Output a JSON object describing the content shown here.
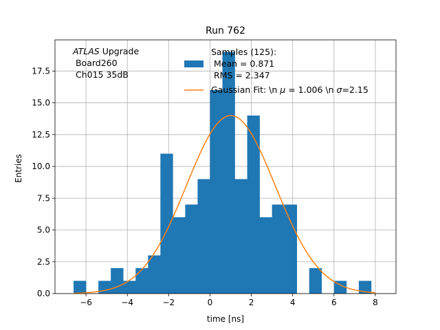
{
  "chart_data": {
    "type": "bar",
    "title": "Run 762",
    "xlabel": "time [ns]",
    "ylabel": "Entries",
    "xlim": [
      -7.5,
      9.0
    ],
    "ylim": [
      0,
      19.95
    ],
    "grid": true,
    "legend_position": "top-center",
    "x_ticks": [
      -6,
      -4,
      -2,
      0,
      2,
      4,
      6,
      8
    ],
    "x_tick_labels": [
      "−6",
      "−4",
      "−2",
      "0",
      "2",
      "4",
      "6",
      "8"
    ],
    "y_ticks": [
      0,
      2.5,
      5,
      7.5,
      10,
      12.5,
      15,
      17.5
    ],
    "y_tick_labels": [
      "0.0",
      "2.5",
      "5.0",
      "7.5",
      "10.0",
      "12.5",
      "15.0",
      "17.5"
    ],
    "annotation_lines": [
      "Upgrade",
      "Board260",
      "Ch015 35dB"
    ],
    "annotation_italic": "ATLAS",
    "histogram": {
      "color": "#1f77b4",
      "bin_start": -6.6,
      "bin_width": 0.6,
      "counts": [
        1,
        0,
        1,
        2,
        1,
        2,
        3,
        11,
        6,
        7,
        9,
        16,
        19,
        9,
        14,
        6,
        7,
        7,
        0,
        2,
        0,
        1,
        0,
        1
      ],
      "legend_lines": [
        "Samples (125):",
        "Mean = 0.871",
        "RMS = 2.347"
      ]
    },
    "fit": {
      "color": "#ff7f0e",
      "amplitude": 14.0,
      "mu": 1.006,
      "sigma": 2.15,
      "x_range": [
        -6.6,
        8.0
      ],
      "legend_label_prefix": "Gaussian Fit: \\n ",
      "legend_mu_symbol": "μ",
      "legend_mu_value": " = 1.006 \\n ",
      "legend_sigma_symbol": "σ",
      "legend_sigma_value": "=2.15"
    }
  }
}
